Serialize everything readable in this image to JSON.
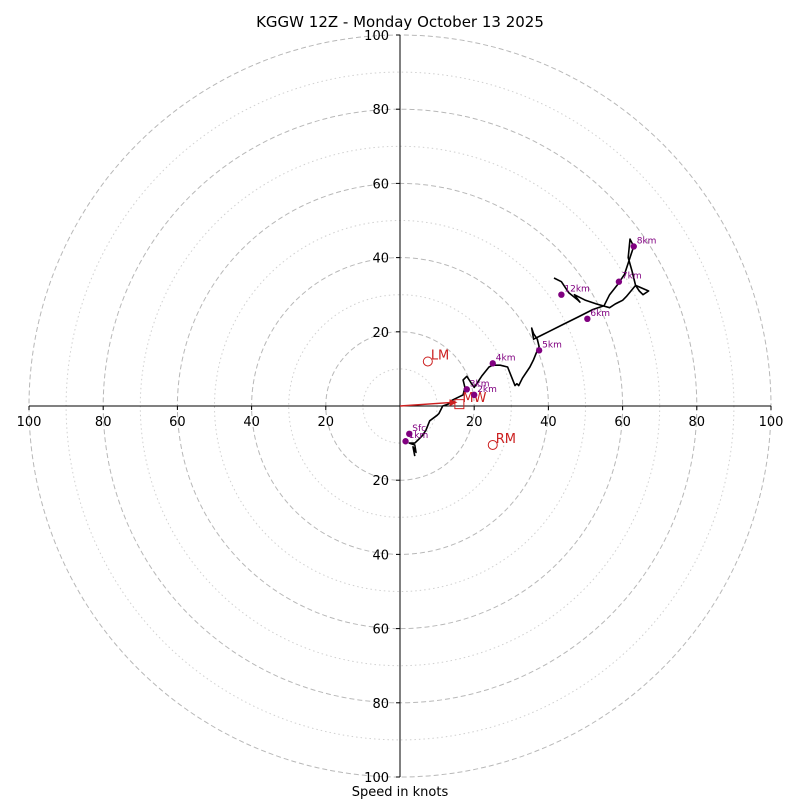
{
  "chart_data": {
    "type": "line",
    "title": "KGGW 12Z - Monday October 13 2025",
    "xlabel": "Speed in knots",
    "ylabel": "",
    "xlim": [
      -100,
      100
    ],
    "ylim": [
      -100,
      100
    ],
    "rings_major": [
      20,
      40,
      60,
      80,
      100
    ],
    "rings_minor": [
      10,
      30,
      50,
      70,
      90
    ],
    "x_tick_labels": [
      "100",
      "80",
      "60",
      "40",
      "20",
      "20",
      "40",
      "60",
      "80",
      "100"
    ],
    "x_tick_values": [
      -100,
      -80,
      -60,
      -40,
      -20,
      20,
      40,
      60,
      80,
      100
    ],
    "y_tick_labels": [
      "100",
      "80",
      "60",
      "40",
      "20",
      "20",
      "40",
      "60",
      "80",
      "100"
    ],
    "y_tick_values": [
      100,
      80,
      60,
      40,
      20,
      -20,
      -40,
      -60,
      -80,
      -100
    ],
    "trace": {
      "name": "hodograph",
      "color": "#000000",
      "x": [
        4,
        3.5,
        4.3,
        4,
        2.5,
        4,
        5,
        6,
        7,
        8,
        10,
        10.5,
        11.5,
        13,
        14,
        16,
        17,
        17.5,
        17,
        18,
        19,
        20,
        21,
        22,
        24,
        25,
        27,
        29,
        30,
        31,
        31.5,
        32,
        33,
        35,
        36,
        37,
        37.5,
        37,
        36,
        35.5,
        36,
        38,
        40,
        44,
        48,
        52,
        55,
        56.5,
        58.5,
        60.5,
        62,
        63,
        62.5,
        62,
        61.5,
        62.5,
        63.5,
        64.5,
        65.5,
        67,
        63.5,
        61,
        60,
        59,
        58,
        56.5,
        53,
        50,
        47,
        48.5,
        48,
        45.5,
        43.5,
        41.5
      ],
      "y": [
        -13.5,
        -11,
        -12.5,
        -10.5,
        -10,
        -10,
        -9,
        -8,
        -6.5,
        -4,
        -2.5,
        -2,
        0,
        0.5,
        1.5,
        2.5,
        3,
        5,
        7,
        8,
        6.5,
        5,
        6.5,
        8,
        10.5,
        11,
        11,
        10.5,
        8,
        5.5,
        6,
        5.5,
        7.5,
        10.5,
        12.5,
        15,
        16,
        18,
        19.5,
        21,
        18,
        19,
        20,
        22,
        24,
        26,
        27,
        30,
        32.5,
        35.5,
        40,
        43,
        44,
        45,
        40,
        36.5,
        32.5,
        31,
        30,
        31,
        32.5,
        29.5,
        28.5,
        28,
        27.5,
        26.5,
        27.5,
        28.5,
        30,
        28,
        28.5,
        30.5,
        33.5,
        34.5
      ]
    },
    "height_markers": {
      "color": "#800080",
      "points": [
        {
          "label": "Sfc",
          "x": 2.5,
          "y": -7.5
        },
        {
          "label": "1km",
          "x": 1.5,
          "y": -9.5
        },
        {
          "label": "2km",
          "x": 20,
          "y": 3
        },
        {
          "label": "3km",
          "x": 18,
          "y": 4.5
        },
        {
          "label": "4km",
          "x": 25,
          "y": 11.5
        },
        {
          "label": "5km",
          "x": 37.5,
          "y": 15
        },
        {
          "label": "6km",
          "x": 50.5,
          "y": 23.5
        },
        {
          "label": "7km",
          "x": 59,
          "y": 33.5
        },
        {
          "label": "8km",
          "x": 63,
          "y": 43
        },
        {
          "label": "12km",
          "x": 43.5,
          "y": 30
        }
      ]
    },
    "storm_motion": {
      "color": "#cc2020",
      "points": [
        {
          "label": "LM",
          "marker": "circle",
          "x": 7.5,
          "y": 12
        },
        {
          "label": "RM",
          "marker": "circle",
          "x": 25,
          "y": -10.5
        },
        {
          "label": "MW",
          "marker": "square",
          "x": 16,
          "y": 0.5
        }
      ],
      "arrow": {
        "from": [
          0,
          0
        ],
        "to": [
          15.5,
          1
        ]
      }
    }
  }
}
